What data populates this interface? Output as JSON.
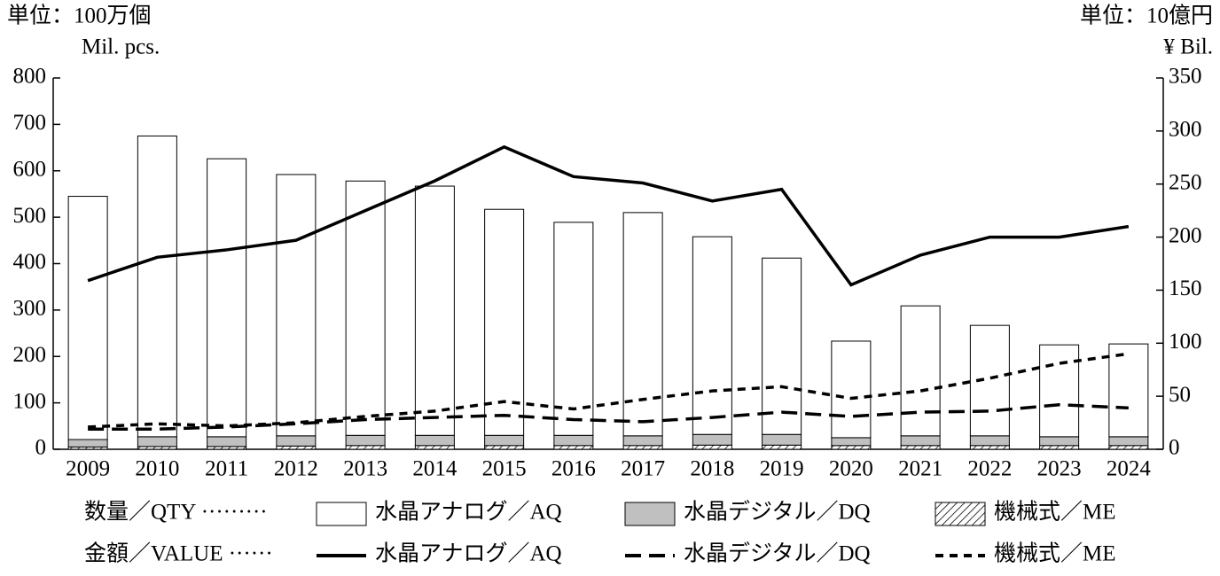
{
  "chart_data": {
    "type": "bar",
    "y_unit": "単位：100万個",
    "y_unit_en": "Mil. pcs.",
    "y2_unit": "単位：10億円",
    "y2_unit_en": "¥ Bil.",
    "categories": [
      "2009",
      "2010",
      "2011",
      "2012",
      "2013",
      "2014",
      "2015",
      "2016",
      "2017",
      "2018",
      "2019",
      "2020",
      "2021",
      "2022",
      "2023",
      "2024"
    ],
    "ylim": [
      0,
      800
    ],
    "yticks": [
      0,
      100,
      200,
      300,
      400,
      500,
      600,
      700,
      800
    ],
    "y2lim": [
      0,
      350
    ],
    "y2ticks": [
      0,
      50,
      100,
      150,
      200,
      250,
      300,
      350
    ],
    "legend_rows": [
      "数量／QTY ·········",
      "金額／VALUE ······"
    ],
    "series": [
      {
        "name": "水晶アナログ／AQ",
        "type": "bar",
        "color": "#ffffff",
        "fill": "solid",
        "values": [
          524,
          648,
          599,
          563,
          548,
          537,
          487,
          459,
          481,
          426,
          380,
          208,
          280,
          238,
          198,
          200
        ]
      },
      {
        "name": "水晶デジタル／DQ",
        "type": "bar",
        "color": "#c0c0c0",
        "fill": "solid",
        "values": [
          16,
          21,
          21,
          22,
          22,
          22,
          22,
          22,
          21,
          23,
          23,
          17,
          21,
          21,
          19,
          19
        ]
      },
      {
        "name": "機械式／ME",
        "type": "bar",
        "color": "#000000",
        "fill": "hatch",
        "values": [
          5,
          6,
          6,
          7,
          8,
          8,
          8,
          8,
          8,
          9,
          9,
          8,
          8,
          8,
          8,
          8
        ]
      },
      {
        "name": "水晶アナログ／AQ",
        "type": "line",
        "axis": "y2",
        "color": "#000000",
        "dash": "solid",
        "values": [
          159,
          181,
          188,
          197,
          225,
          253,
          285,
          257,
          251,
          234,
          245,
          155,
          183,
          200,
          200,
          210
        ]
      },
      {
        "name": "水晶デジタル／DQ",
        "type": "line",
        "axis": "y2",
        "color": "#000000",
        "dash": "long",
        "values": [
          19,
          19,
          21,
          24,
          28,
          30,
          32,
          28,
          26,
          30,
          35,
          31,
          35,
          36,
          42,
          39
        ]
      },
      {
        "name": "機械式／ME",
        "type": "line",
        "axis": "y2",
        "color": "#000000",
        "dash": "short",
        "values": [
          21,
          24,
          22,
          25,
          31,
          36,
          45,
          38,
          47,
          55,
          59,
          48,
          55,
          67,
          81,
          90
        ]
      }
    ]
  }
}
